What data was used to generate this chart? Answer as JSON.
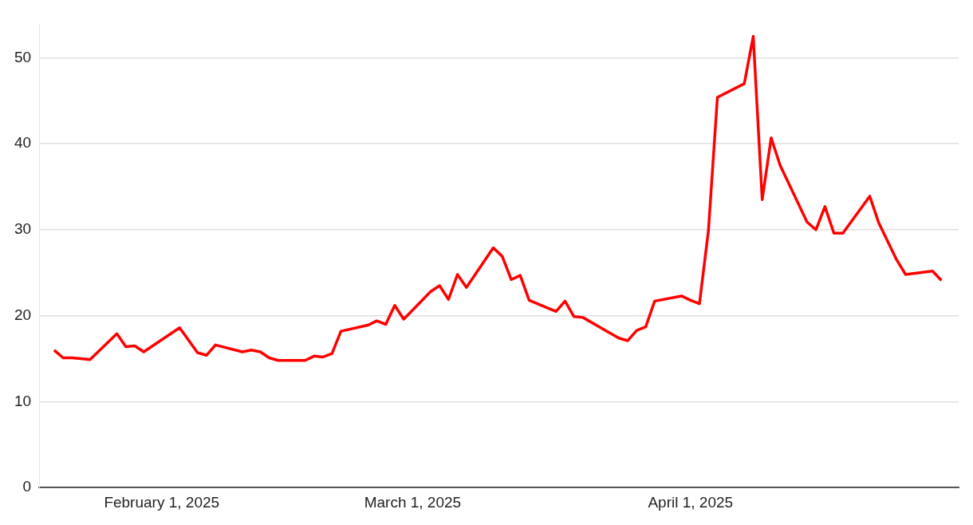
{
  "chart_data": {
    "type": "line",
    "x": [
      "2025-01-20",
      "2025-01-21",
      "2025-01-22",
      "2025-01-23",
      "2025-01-24",
      "2025-01-27",
      "2025-01-28",
      "2025-01-29",
      "2025-01-30",
      "2025-02-03",
      "2025-02-05",
      "2025-02-06",
      "2025-02-07",
      "2025-02-10",
      "2025-02-11",
      "2025-02-12",
      "2025-02-13",
      "2025-02-14",
      "2025-02-17",
      "2025-02-18",
      "2025-02-19",
      "2025-02-20",
      "2025-02-21",
      "2025-02-24",
      "2025-02-25",
      "2025-02-26",
      "2025-02-27",
      "2025-02-28",
      "2025-03-03",
      "2025-03-04",
      "2025-03-05",
      "2025-03-06",
      "2025-03-07",
      "2025-03-10",
      "2025-03-11",
      "2025-03-12",
      "2025-03-13",
      "2025-03-14",
      "2025-03-17",
      "2025-03-18",
      "2025-03-19",
      "2025-03-20",
      "2025-03-24",
      "2025-03-25",
      "2025-03-26",
      "2025-03-27",
      "2025-03-28",
      "2025-03-31",
      "2025-04-01",
      "2025-04-02",
      "2025-04-03",
      "2025-04-04",
      "2025-04-07",
      "2025-04-08",
      "2025-04-09",
      "2025-04-10",
      "2025-04-11",
      "2025-04-14",
      "2025-04-15",
      "2025-04-16",
      "2025-04-17",
      "2025-04-18",
      "2025-04-21",
      "2025-04-22",
      "2025-04-24",
      "2025-04-25",
      "2025-04-28",
      "2025-04-29"
    ],
    "series": [
      {
        "color": "#ff0000",
        "values": [
          16.0,
          15.1,
          15.1,
          15.0,
          14.9,
          17.9,
          16.4,
          16.5,
          15.8,
          18.6,
          15.7,
          15.4,
          16.6,
          15.8,
          16.0,
          15.8,
          15.1,
          14.8,
          14.8,
          15.3,
          15.2,
          15.6,
          18.2,
          18.9,
          19.4,
          19.0,
          21.2,
          19.6,
          22.8,
          23.5,
          21.9,
          24.8,
          23.3,
          27.9,
          26.9,
          24.2,
          24.7,
          21.8,
          20.5,
          21.7,
          19.9,
          19.8,
          17.4,
          17.1,
          18.3,
          18.7,
          21.7,
          22.3,
          21.8,
          21.4,
          29.9,
          45.4,
          47.0,
          52.5,
          33.5,
          40.7,
          37.5,
          30.9,
          30.0,
          32.7,
          29.6,
          29.6,
          33.9,
          30.8,
          26.5,
          24.8,
          25.2,
          24.1
        ]
      }
    ],
    "xlim": [
      "2025-01-18T08:00",
      "2025-04-30T22:00"
    ],
    "xticks": [
      {
        "value": "2025-02-01",
        "label": "February 1, 2025"
      },
      {
        "value": "2025-03-01",
        "label": "March 1, 2025"
      },
      {
        "value": "2025-04-01",
        "label": "April 1, 2025"
      }
    ],
    "ylim": [
      0,
      54
    ],
    "yticks": [
      0,
      10,
      20,
      30,
      40,
      50
    ],
    "grid": "y",
    "legend": false,
    "marker": "none",
    "line_style": "solid"
  }
}
